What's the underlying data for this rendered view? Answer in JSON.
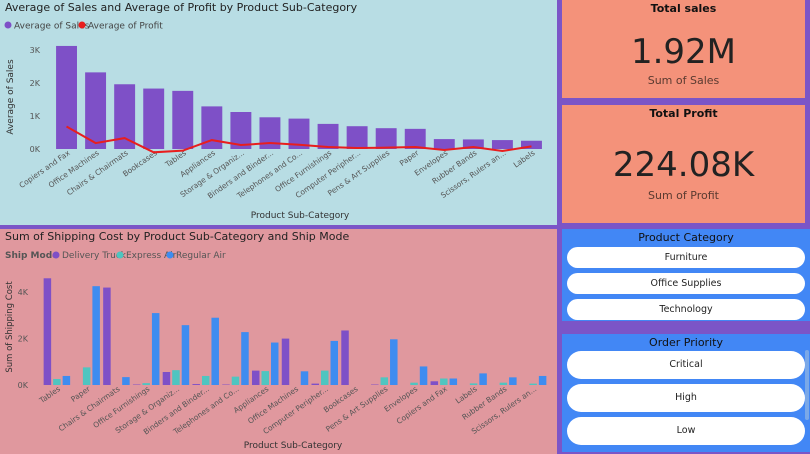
{
  "colors": {
    "sales": "#7E50C7",
    "profit": "#E81E1E",
    "delivery_truck": "#7E50C7",
    "express_air": "#4FC5C0",
    "regular_air": "#3E8CF0"
  },
  "chart1": {
    "title": "Average of Sales and Average of Profit by Product Sub-Category",
    "legend": [
      "Average of Sales",
      "Average of Profit"
    ]
  },
  "chart2": {
    "title": "Sum of Shipping Cost by Product Sub-Category and Ship Mode",
    "legend_title": "Ship Mode",
    "legend": [
      "Delivery Truck",
      "Express Air",
      "Regular Air"
    ]
  },
  "cards": {
    "sales": {
      "title": "Total sales",
      "value": "1.92M",
      "subtitle": "Sum of Sales"
    },
    "profit": {
      "title": "Total Profit",
      "value": "224.08K",
      "subtitle": "Sum of Profit"
    }
  },
  "slicers": {
    "category": {
      "title": "Product Category",
      "items": [
        "Furniture",
        "Office Supplies",
        "Technology"
      ]
    },
    "priority": {
      "title": "Order Priority",
      "items": [
        "Critical",
        "High",
        "Low"
      ]
    }
  },
  "chart_data": [
    {
      "type": "bar",
      "title": "Average of Sales and Average of Profit by Product Sub-Category",
      "xlabel": "Product Sub-Category",
      "ylabel": "Average of Sales",
      "ylim": [
        0,
        3300
      ],
      "yticks": [
        "0K",
        "1K",
        "2K",
        "3K"
      ],
      "legend_position": "top-left",
      "grid": false,
      "categories": [
        "Copiers and Fax",
        "Office Machines",
        "Chairs & Chairmats",
        "Bookcases",
        "Tables",
        "Appliances",
        "Storage & Organiz...",
        "Binders and Binder...",
        "Telephones and Co...",
        "Office Furnishings",
        "Computer Peripher...",
        "Pens & Art Supplies",
        "Paper",
        "Envelopes",
        "Rubber Bands",
        "Scissors, Rulers an...",
        "Labels"
      ],
      "series": [
        {
          "name": "Average of Sales",
          "type": "bar",
          "values": [
            3120,
            2320,
            1960,
            1830,
            1760,
            1290,
            1120,
            960,
            920,
            760,
            690,
            630,
            610,
            300,
            290,
            270,
            250
          ]
        },
        {
          "name": "Average of Profit",
          "type": "line",
          "values": [
            680,
            180,
            330,
            -100,
            -50,
            270,
            120,
            180,
            130,
            60,
            30,
            40,
            60,
            -30,
            60,
            -60,
            80
          ]
        }
      ]
    },
    {
      "type": "bar",
      "title": "Sum of Shipping Cost by Product Sub-Category and Ship Mode",
      "xlabel": "Product Sub-Category",
      "ylabel": "Sum of Shipping Cost",
      "ylim": [
        0,
        5000
      ],
      "yticks": [
        "0K",
        "2K",
        "4K"
      ],
      "legend_position": "top-left",
      "grid": false,
      "categories": [
        "Tables",
        "Paper",
        "Chairs & Chairmats",
        "Office Furnishings",
        "Storage & Organiz...",
        "Binders and Binder...",
        "Telephones and Co...",
        "Appliances",
        "Office Machines",
        "Computer Peripher...",
        "Bookcases",
        "Pens & Art Supplies",
        "Envelopes",
        "Copiers and Fax",
        "Labels",
        "Rubber Bands",
        "Scissors, Rulers an..."
      ],
      "series": [
        {
          "name": "Delivery Truck",
          "values": [
            4600,
            0,
            4200,
            20,
            560,
            40,
            20,
            620,
            2000,
            60,
            2350,
            20,
            0,
            160,
            0,
            0,
            0
          ]
        },
        {
          "name": "Express Air",
          "values": [
            260,
            760,
            0,
            80,
            640,
            390,
            360,
            600,
            0,
            620,
            0,
            330,
            100,
            280,
            70,
            100,
            60
          ]
        },
        {
          "name": "Regular Air",
          "values": [
            390,
            4260,
            340,
            3100,
            2580,
            2900,
            2280,
            1830,
            590,
            1900,
            0,
            1970,
            800,
            280,
            500,
            330,
            390
          ]
        }
      ]
    }
  ]
}
